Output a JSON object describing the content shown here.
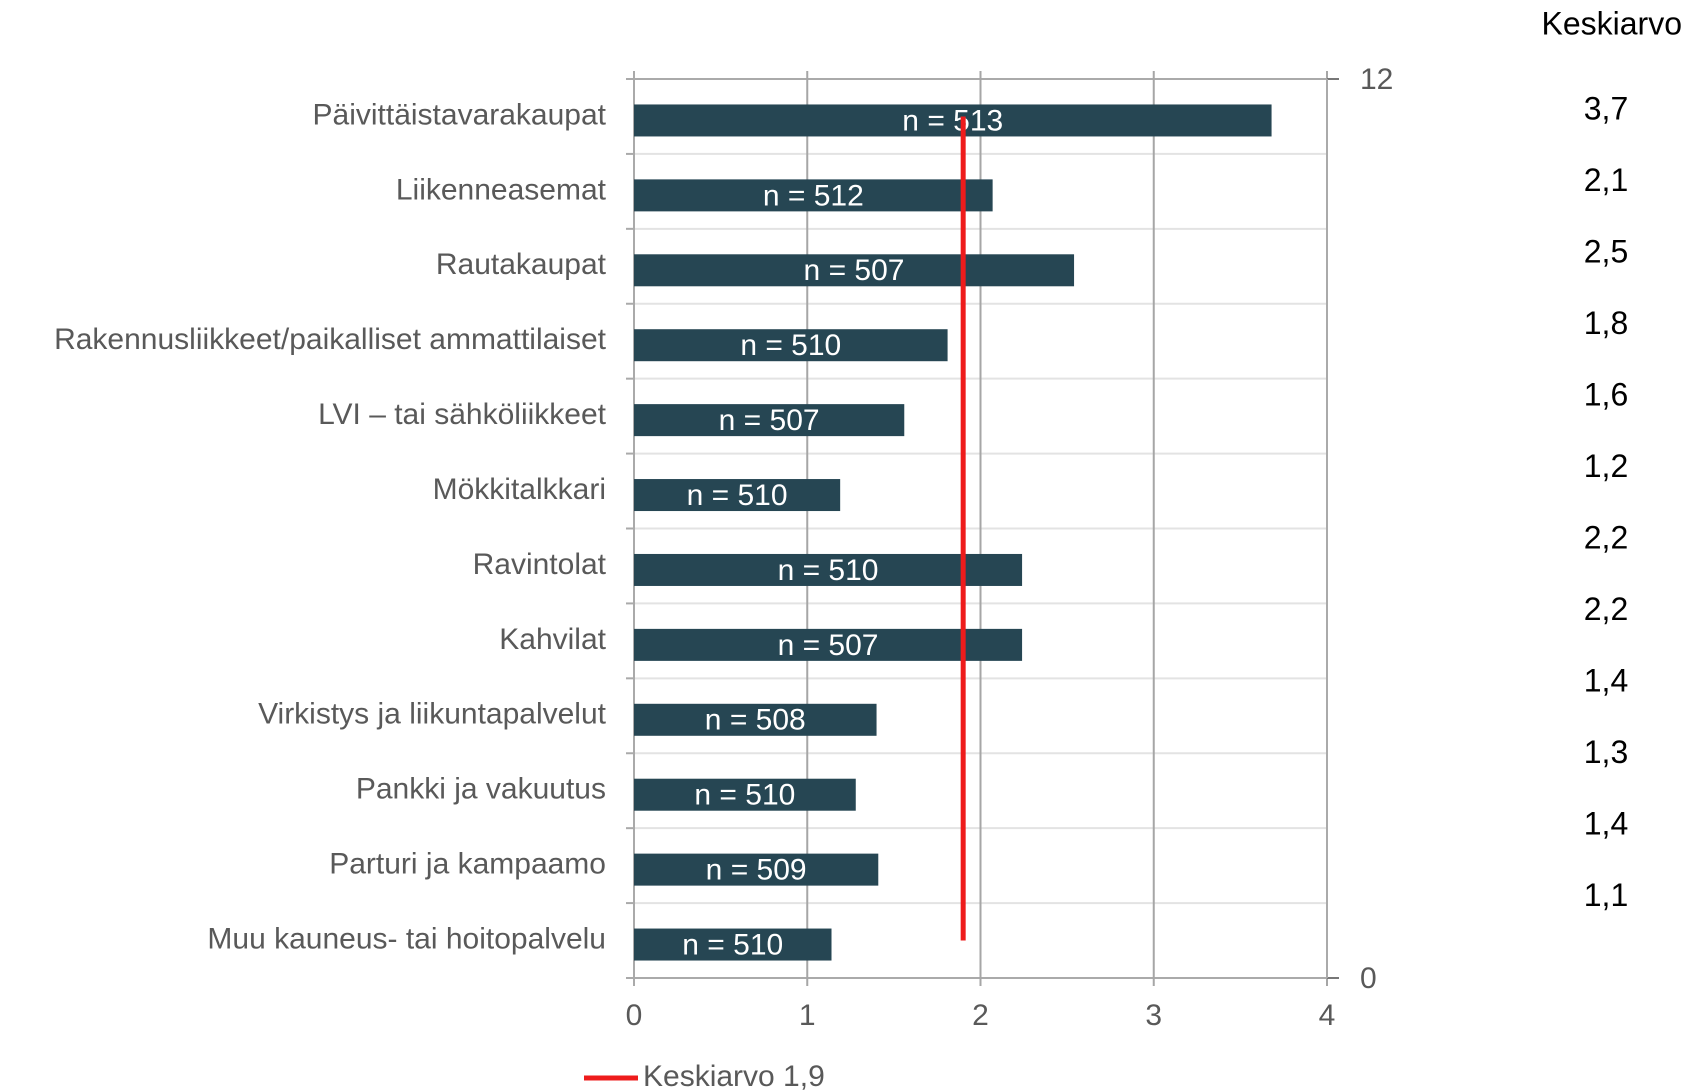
{
  "chart_data": {
    "type": "bar",
    "orientation": "horizontal",
    "categories": [
      "Päivittäistavarakaupat",
      "Liikenneasemat",
      "Rautakaupat",
      "Rakennusliikkeet/paikalliset ammattilaiset",
      "LVI – tai sähköliikkeet",
      "Mökkitalkkari",
      "Ravintolat",
      "Kahvilat",
      "Virkistys ja liikuntapalvelut",
      "Pankki ja vakuutus",
      "Parturi ja kampaamo",
      "Muu kauneus- tai hoitopalvelu"
    ],
    "values": [
      3.68,
      2.07,
      2.54,
      1.81,
      1.56,
      1.19,
      2.24,
      2.24,
      1.4,
      1.28,
      1.41,
      1.14
    ],
    "value_labels": [
      "3,7",
      "2,1",
      "2,5",
      "1,8",
      "1,6",
      "1,2",
      "2,2",
      "2,2",
      "1,4",
      "1,3",
      "1,4",
      "1,1"
    ],
    "value_labels_title": "Keskiarvo",
    "n_labels": [
      "n = 513",
      "n = 512",
      "n = 507",
      "n = 510",
      "n = 507",
      "n = 510",
      "n = 510",
      "n = 507",
      "n = 508",
      "n = 510",
      "n = 509",
      "n = 510"
    ],
    "color": "#264653",
    "xlim": [
      0,
      4
    ],
    "xticks": [
      0,
      1,
      2,
      3,
      4
    ],
    "y2lim": [
      0,
      12
    ],
    "y2ticks": [
      0,
      12
    ],
    "average_line": {
      "name": "Keskiarvo 1,9",
      "color": "#ee1c1c",
      "axis": "y2",
      "x": [
        1.9,
        1.9
      ],
      "y": [
        0.5,
        11.5
      ]
    },
    "grid": true
  }
}
